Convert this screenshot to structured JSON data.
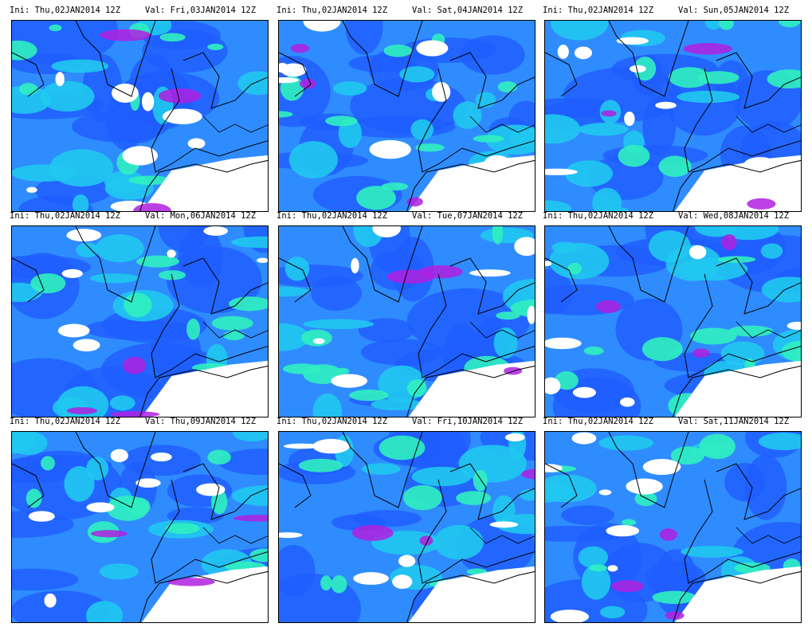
{
  "panels": [
    {
      "init": "Ini: Thu,02JAN2014 12Z",
      "valid": "Val: Fri,03JAN2014 12Z"
    },
    {
      "init": "Ini: Thu,02JAN2014 12Z",
      "valid": "Val: Sat,04JAN2014 12Z"
    },
    {
      "init": "Ini: Thu,02JAN2014 12Z",
      "valid": "Val: Sun,05JAN2014 12Z"
    },
    {
      "init": "Ini: Thu,02JAN2014 12Z",
      "valid": "Val: Mon,06JAN2014 12Z"
    },
    {
      "init": "Ini: Thu,02JAN2014 12Z",
      "valid": "Val: Tue,07JAN2014 12Z"
    },
    {
      "init": "Ini: Thu,02JAN2014 12Z",
      "valid": "Val: Wed,08JAN2014 12Z"
    },
    {
      "init": "Ini: Thu,02JAN2014 12Z",
      "valid": "Val: Thu,09JAN2014 12Z"
    },
    {
      "init": "Ini: Thu,02JAN2014 12Z",
      "valid": "Val: Fri,10JAN2014 12Z"
    },
    {
      "init": "Ini: Thu,02JAN2014 12Z",
      "valid": "Val: Sat,11JAN2014 12Z"
    }
  ]
}
